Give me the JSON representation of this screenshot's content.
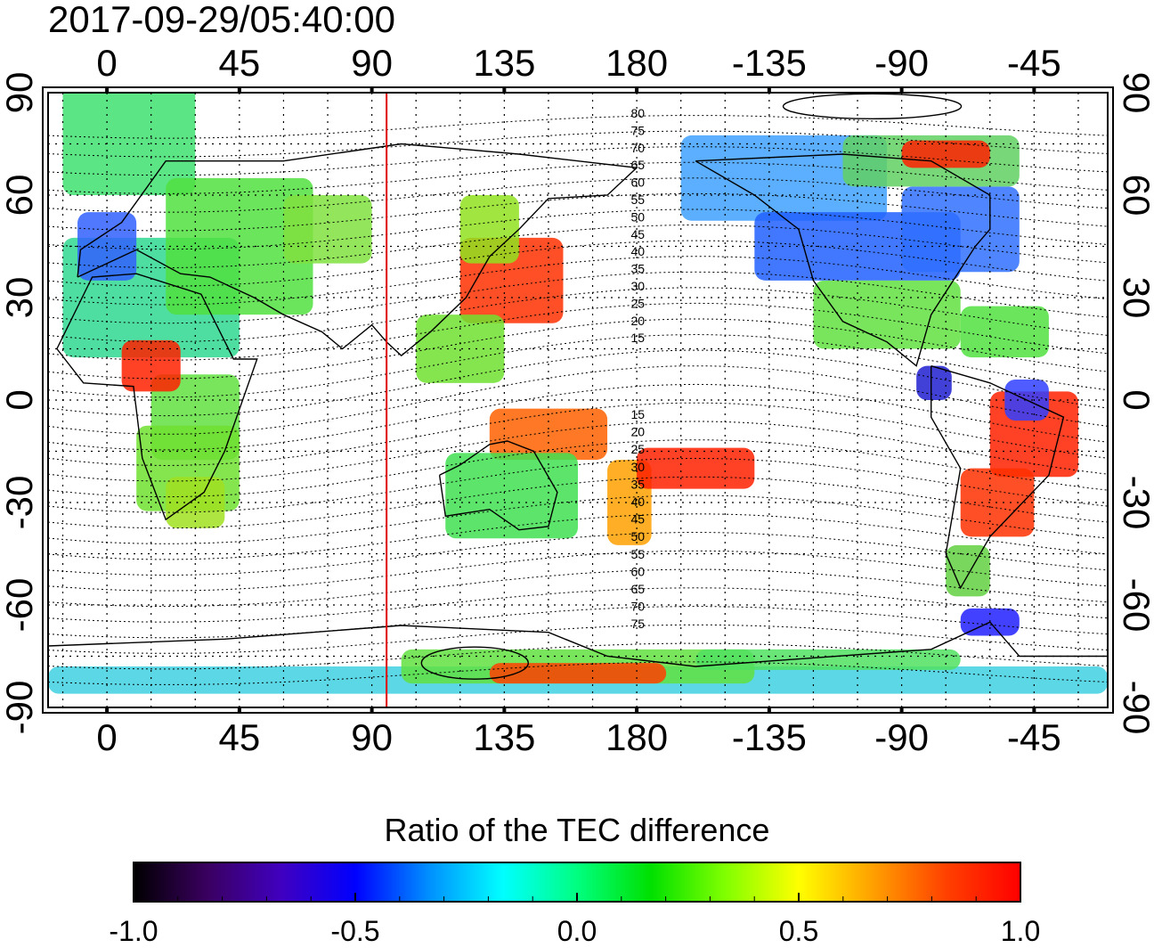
{
  "title": "2017-09-29/05:40:00",
  "map": {
    "top_lon_ticks": [
      "0",
      "45",
      "90",
      "135",
      "180",
      "-135",
      "-90",
      "-45"
    ],
    "bottom_lon_ticks": [
      "0",
      "45",
      "90",
      "135",
      "180",
      "-135",
      "-90",
      "-45"
    ],
    "left_lat_ticks": [
      "90",
      "60",
      "30",
      "0",
      "-30",
      "-60",
      "-90"
    ],
    "right_lat_ticks": [
      "90",
      "60",
      "30",
      "0",
      "-30",
      "-60",
      "-90"
    ],
    "lon_ticks_values": [
      0,
      45,
      90,
      135,
      180,
      225,
      270,
      315
    ],
    "lat_ticks_values": [
      90,
      60,
      30,
      0,
      -30,
      -60,
      -90
    ],
    "lon_range": [
      -20,
      340
    ],
    "lat_range": [
      -90,
      90
    ],
    "grid": "dotted",
    "terminator_longitude": 95,
    "terminator_color": "#e00000",
    "mlat_labels_north": [
      "80",
      "75",
      "70",
      "65",
      "60",
      "55",
      "50",
      "45",
      "40",
      "35",
      "30",
      "25",
      "20",
      "15"
    ],
    "mlat_labels_south": [
      "15",
      "20",
      "25",
      "30",
      "35",
      "40",
      "45",
      "50",
      "55",
      "60",
      "65",
      "70",
      "75"
    ]
  },
  "colorbar": {
    "title": "Ratio of the TEC difference",
    "ticks": [
      "-1.0",
      "-0.5",
      "0.0",
      "0.5",
      "1.0"
    ],
    "tick_values": [
      -1.0,
      -0.5,
      0.0,
      0.5,
      1.0
    ],
    "range": [
      -1.0,
      1.0
    ],
    "colors": [
      "#000000",
      "#3a0060",
      "#4000c0",
      "#0000ff",
      "#0090ff",
      "#00ffff",
      "#00ff80",
      "#00e000",
      "#80ff00",
      "#ffff00",
      "#ffa000",
      "#ff4000",
      "#ff0000"
    ]
  }
}
